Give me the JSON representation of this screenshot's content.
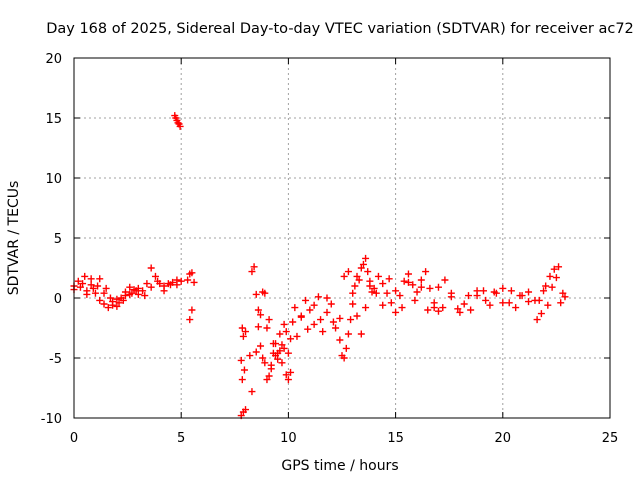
{
  "chart_data": {
    "type": "scatter",
    "title": "Day 168 of 2025, Sidereal Day-to-day VTEC variation (SDTVAR) for receiver ac72",
    "xlabel": "GPS time / hours",
    "ylabel": "SDTVAR / TECUs",
    "xlim": [
      0,
      25
    ],
    "ylim": [
      -10,
      20
    ],
    "xticks": [
      "0",
      "5",
      "10",
      "15",
      "20",
      "25"
    ],
    "yticks": [
      "-10",
      "-5",
      "0",
      "5",
      "10",
      "15",
      "20"
    ],
    "grid": true,
    "marker": "plus",
    "color": "#ff0000",
    "series": [
      {
        "name": "SDTVAR",
        "x": [
          0.0,
          0.2,
          0.4,
          0.6,
          0.8,
          1.0,
          1.2,
          1.4,
          1.6,
          1.8,
          2.0,
          2.2,
          2.4,
          2.6,
          2.8,
          3.0,
          3.2,
          3.4,
          3.6,
          3.8,
          4.0,
          4.2,
          4.4,
          4.6,
          4.8,
          5.0,
          0.0,
          0.3,
          0.6,
          0.9,
          1.2,
          1.5,
          1.8,
          2.1,
          2.4,
          2.7,
          3.0,
          3.3,
          3.6,
          3.9,
          4.2,
          4.5,
          4.8,
          0.5,
          0.8,
          1.1,
          1.4,
          1.7,
          2.0,
          2.3,
          2.6,
          2.9,
          4.7,
          4.75,
          4.8,
          4.85,
          4.9,
          4.95,
          5.3,
          5.4,
          5.5,
          5.6,
          5.5,
          5.4,
          7.8,
          7.9,
          8.0,
          7.85,
          7.95,
          7.8,
          7.9,
          8.0,
          7.85,
          8.2,
          8.3,
          8.4,
          8.5,
          8.6,
          8.7,
          8.8,
          8.9,
          9.0,
          9.1,
          9.2,
          9.3,
          9.4,
          9.5,
          9.6,
          9.7,
          9.8,
          9.9,
          10.0,
          10.1,
          8.3,
          8.5,
          8.7,
          8.9,
          9.1,
          9.3,
          9.5,
          9.7,
          9.9,
          10.1,
          8.6,
          8.8,
          9.0,
          9.2,
          9.4,
          9.6,
          9.8,
          10.0,
          10.2,
          10.4,
          10.6,
          10.8,
          11.0,
          11.2,
          11.4,
          11.6,
          11.8,
          12.0,
          12.2,
          12.4,
          10.3,
          10.6,
          10.9,
          11.2,
          11.5,
          11.8,
          12.1,
          12.4,
          12.5,
          12.6,
          12.7,
          12.8,
          12.9,
          13.0,
          13.1,
          13.2,
          13.3,
          13.4,
          13.5,
          13.6,
          13.7,
          13.8,
          13.9,
          12.6,
          12.8,
          13.0,
          13.2,
          13.4,
          13.6,
          13.8,
          14.0,
          14.2,
          14.4,
          14.6,
          14.8,
          15.0,
          15.2,
          15.4,
          15.6,
          15.8,
          16.0,
          16.2,
          16.4,
          16.6,
          16.8,
          17.0,
          14.1,
          14.4,
          14.7,
          15.0,
          15.3,
          15.6,
          15.9,
          16.2,
          16.5,
          16.8,
          17.0,
          17.3,
          17.6,
          17.9,
          18.2,
          18.5,
          18.8,
          19.1,
          19.4,
          19.7,
          20.0,
          20.3,
          20.6,
          20.9,
          21.2,
          21.5,
          17.2,
          17.6,
          18.0,
          18.4,
          18.8,
          19.2,
          19.6,
          20.0,
          20.4,
          20.8,
          21.2,
          21.6,
          21.8,
          22.0,
          22.2,
          22.4,
          22.6,
          22.8,
          22.9,
          21.7,
          21.9,
          22.1,
          22.3,
          22.5,
          22.7
        ],
        "y": [
          1.0,
          1.4,
          1.2,
          0.6,
          1.1,
          0.4,
          -0.2,
          -0.5,
          -0.8,
          -0.3,
          -0.1,
          0.0,
          0.5,
          0.9,
          0.7,
          0.3,
          0.6,
          1.2,
          2.5,
          1.8,
          1.2,
          1.0,
          1.2,
          1.3,
          1.1,
          1.4,
          0.7,
          0.9,
          0.3,
          0.8,
          1.6,
          0.8,
          -0.6,
          -0.4,
          0.2,
          0.4,
          0.8,
          0.2,
          0.9,
          1.4,
          0.6,
          1.1,
          1.5,
          1.8,
          1.6,
          1.0,
          0.4,
          0.0,
          -0.7,
          -0.2,
          0.3,
          0.6,
          15.2,
          15.0,
          14.8,
          14.6,
          14.5,
          14.3,
          1.5,
          2.0,
          2.1,
          1.3,
          -1.0,
          -1.8,
          -9.8,
          -9.5,
          -9.3,
          -6.8,
          -6.0,
          -5.2,
          -3.2,
          -2.8,
          -2.5,
          -4.8,
          2.2,
          2.6,
          0.3,
          -2.4,
          -4.0,
          -5.0,
          -5.4,
          -6.8,
          -6.5,
          -5.9,
          -4.6,
          -3.8,
          -5.1,
          -4.4,
          -3.9,
          -4.2,
          -6.4,
          -6.8,
          -6.2,
          -7.8,
          -4.5,
          -1.4,
          0.4,
          -1.8,
          -3.8,
          -4.6,
          -5.4,
          -2.8,
          -3.4,
          -1.0,
          0.5,
          -2.5,
          -5.6,
          -4.8,
          -3.0,
          -2.2,
          -4.6,
          -2.0,
          -3.2,
          -1.6,
          -0.2,
          -1.0,
          -2.2,
          0.1,
          -2.8,
          -1.2,
          -0.5,
          -2.5,
          -1.7,
          -0.8,
          -1.5,
          -2.6,
          -0.6,
          -1.8,
          0.0,
          -2.0,
          -3.5,
          -4.8,
          -5.0,
          -4.2,
          -3.0,
          -1.8,
          -0.5,
          1.0,
          1.8,
          1.5,
          2.5,
          2.8,
          3.3,
          2.2,
          1.0,
          0.5,
          1.8,
          2.2,
          0.4,
          -1.5,
          -3.0,
          -0.8,
          1.4,
          0.8,
          1.8,
          1.2,
          0.4,
          -0.4,
          -1.2,
          0.2,
          1.4,
          2.0,
          1.1,
          0.5,
          1.5,
          2.2,
          0.8,
          -0.8,
          -1.1,
          0.4,
          -0.6,
          1.6,
          0.6,
          -0.8,
          1.3,
          -0.2,
          0.9,
          -1.0,
          -0.4,
          0.9,
          1.5,
          0.1,
          -0.9,
          -0.5,
          -1.0,
          0.2,
          0.6,
          -0.6,
          0.4,
          0.8,
          -0.4,
          -0.8,
          0.2,
          0.5,
          -0.2,
          -0.8,
          0.4,
          -1.2,
          0.2,
          0.6,
          -0.2,
          0.5,
          -0.4,
          0.6,
          0.2,
          -0.3,
          -1.8,
          -1.3,
          1.0,
          1.8,
          2.4,
          2.6,
          0.4,
          0.1,
          -0.2,
          0.6,
          -0.6,
          0.9,
          1.7,
          -0.4
        ]
      }
    ]
  }
}
